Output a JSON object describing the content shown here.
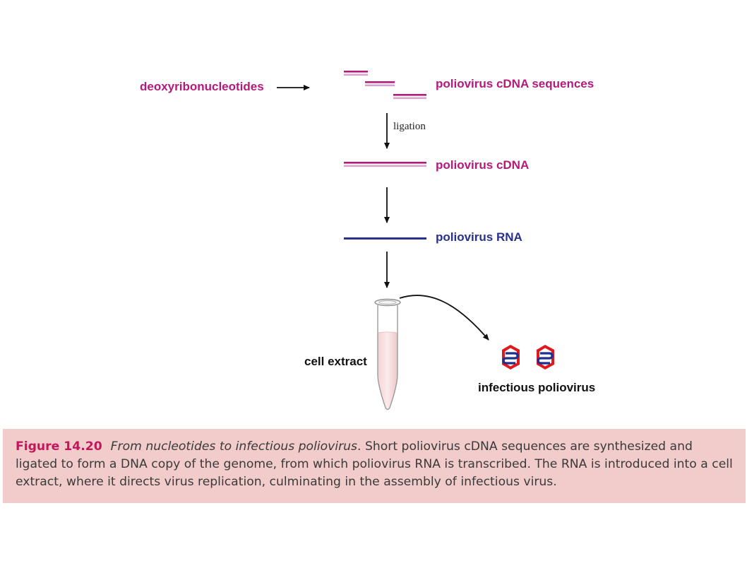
{
  "diagram": {
    "deoxy_label": "deoxyribonucleotides",
    "cdna_sequences_label": "poliovirus cDNA sequences",
    "ligation_label": "ligation",
    "cdna_label": "poliovirus cDNA",
    "rna_label": "poliovirus RNA",
    "cell_extract_label": "cell extract",
    "virus_label": "infectious poliovirus"
  },
  "caption": {
    "figure_number": "Figure 14.20",
    "title": "From nucleotides to infectious poliovirus",
    "body": ". Short poliovirus cDNA sequences are synthesized and ligated to form a DNA copy of the genome, from which poliovirus RNA is transcribed. The RNA is introduced into a cell extract, where it directs virus replication, culminating in the assembly of infectious virus."
  },
  "colors": {
    "dna": "#b5197c",
    "rna": "#2a2f8f",
    "caption_bg": "#f2cbcb",
    "capsid": "#e0191e"
  }
}
